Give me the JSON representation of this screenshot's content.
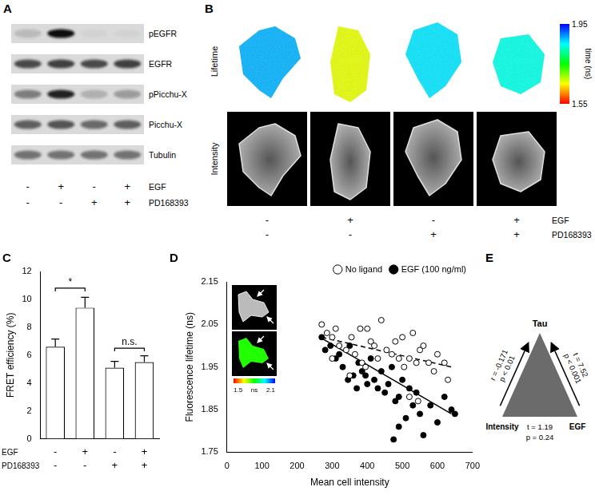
{
  "panels": {
    "A": {
      "panel": "A",
      "rows": [
        {
          "label": "pEGFR",
          "bands": [
            0.15,
            1.0,
            0.03,
            0.03
          ]
        },
        {
          "label": "EGFR",
          "bands": [
            0.7,
            0.75,
            0.7,
            0.75
          ]
        },
        {
          "label": "pPicchu-X",
          "bands": [
            0.45,
            0.9,
            0.2,
            0.3
          ]
        },
        {
          "label": "Picchu-X",
          "bands": [
            0.6,
            0.65,
            0.55,
            0.6
          ]
        },
        {
          "label": "Tubulin",
          "bands": [
            0.5,
            0.5,
            0.5,
            0.5
          ]
        }
      ],
      "conditions": [
        {
          "name": "EGF",
          "values": [
            "-",
            "+",
            "-",
            "+"
          ]
        },
        {
          "name": "PD168393",
          "values": [
            "-",
            "-",
            "+",
            "+"
          ]
        }
      ]
    },
    "B": {
      "panel": "B",
      "row_labels": [
        "Lifetime",
        "Intensity"
      ],
      "cell_lifetime": [
        1.88,
        1.66,
        1.86,
        1.84
      ],
      "colorbar": {
        "range": [
          1.55,
          1.95
        ],
        "ticks": [
          1.95,
          1.55
        ],
        "label": "time (ns)"
      },
      "conditions": [
        {
          "name": "EGF",
          "values": [
            "-",
            "+",
            "-",
            "+"
          ]
        },
        {
          "name": "PD168393",
          "values": [
            "-",
            "-",
            "+",
            "+"
          ]
        }
      ]
    },
    "E": {
      "panel": "E",
      "nodes": {
        "top": "Tau",
        "left": "Intensity",
        "right": "EGF"
      },
      "edges": {
        "left": [
          "r = -0.171",
          "p < 0.01"
        ],
        "right": [
          "t = 7.52",
          "p < 0.001"
        ],
        "bottom": [
          "t = 1.19",
          "p = 0.24"
        ]
      }
    }
  },
  "chart_data": [
    {
      "panel": "C",
      "type": "bar",
      "categories": [
        null,
        null,
        null,
        null
      ],
      "values": [
        6.6,
        9.4,
        5.1,
        5.5
      ],
      "errors": [
        0.55,
        0.75,
        0.45,
        0.45
      ],
      "color": "#ffffff",
      "ylabel": "FRET efficiency (%)",
      "ylim": [
        0,
        12
      ],
      "yticks": [
        0,
        2,
        4,
        6,
        8,
        10,
        12
      ],
      "grid": false,
      "conditions": [
        {
          "name": "EGF",
          "values": [
            "-",
            "+",
            "-",
            "+"
          ]
        },
        {
          "name": "PD168393",
          "values": [
            "-",
            "-",
            "+",
            "+"
          ]
        }
      ],
      "annotations": [
        {
          "text": "*",
          "from": 0,
          "to": 1,
          "y": 10.8
        },
        {
          "text": "n.s.",
          "from": 2,
          "to": 3,
          "y": 6.5
        }
      ]
    },
    {
      "panel": "D",
      "type": "scatter",
      "xlabel": "Mean cell intensity",
      "ylabel": "Fluorescence lifetime (ns)",
      "xlim": [
        0,
        700
      ],
      "xticks": [
        0,
        100,
        200,
        300,
        400,
        500,
        600,
        700
      ],
      "ylim": [
        1.75,
        2.15
      ],
      "yticks": [
        1.75,
        1.85,
        1.95,
        2.05,
        2.15
      ],
      "grid": false,
      "legend": "top-right",
      "series": [
        {
          "name": "No ligand",
          "color": "#000000",
          "marker": "open_circle",
          "line_style": "dashed",
          "x": [
            270,
            285,
            300,
            310,
            320,
            340,
            355,
            365,
            380,
            385,
            395,
            400,
            410,
            420,
            430,
            440,
            455,
            470,
            480,
            490,
            500,
            505,
            520,
            530,
            540,
            550,
            560,
            575,
            590,
            600,
            620,
            630,
            520,
            545,
            350,
            300
          ],
          "values": [
            2.05,
            2.03,
            2.02,
            2.04,
            2.0,
            1.99,
            2.02,
            1.98,
            2.04,
            1.96,
            1.95,
            2.04,
            2.01,
            2.0,
            1.97,
            2.06,
            1.99,
            1.98,
            2.01,
            1.97,
            2.02,
            1.95,
            1.97,
            2.03,
            1.96,
            1.99,
            2.0,
            1.96,
            1.94,
            1.98,
            1.96,
            1.92,
            1.88,
            1.87,
            1.93,
            1.97
          ],
          "fit": {
            "x": [
              270,
              640
            ],
            "y": [
              2.02,
              1.95
            ]
          }
        },
        {
          "name": "EGF (100 ng/ml)",
          "color": "#000000",
          "marker": "filled_circle",
          "line_style": "solid",
          "x": [
            270,
            280,
            295,
            310,
            320,
            330,
            345,
            350,
            360,
            370,
            375,
            385,
            395,
            400,
            410,
            420,
            430,
            440,
            450,
            460,
            470,
            480,
            490,
            500,
            510,
            520,
            530,
            540,
            550,
            560,
            580,
            600,
            620,
            640,
            650,
            475,
            490
          ],
          "values": [
            2.02,
            1.99,
            2.0,
            1.97,
            1.98,
            1.95,
            1.92,
            2.0,
            1.93,
            1.9,
            1.96,
            1.94,
            1.93,
            1.91,
            1.97,
            1.92,
            1.9,
            1.94,
            1.89,
            1.91,
            1.95,
            1.87,
            1.88,
            1.92,
            1.83,
            1.9,
            1.86,
            1.89,
            1.84,
            1.79,
            1.86,
            1.82,
            1.88,
            1.85,
            1.84,
            1.78,
            1.81
          ],
          "fit": {
            "x": [
              265,
              640
            ],
            "y": [
              2.02,
              1.84
            ]
          }
        }
      ],
      "inset": {
        "cell_lifetime": 1.78,
        "colorbar": {
          "range": [
            1.5,
            2.1
          ],
          "ticks": [
            1.5,
            2.1
          ],
          "label": "ns"
        }
      }
    }
  ]
}
